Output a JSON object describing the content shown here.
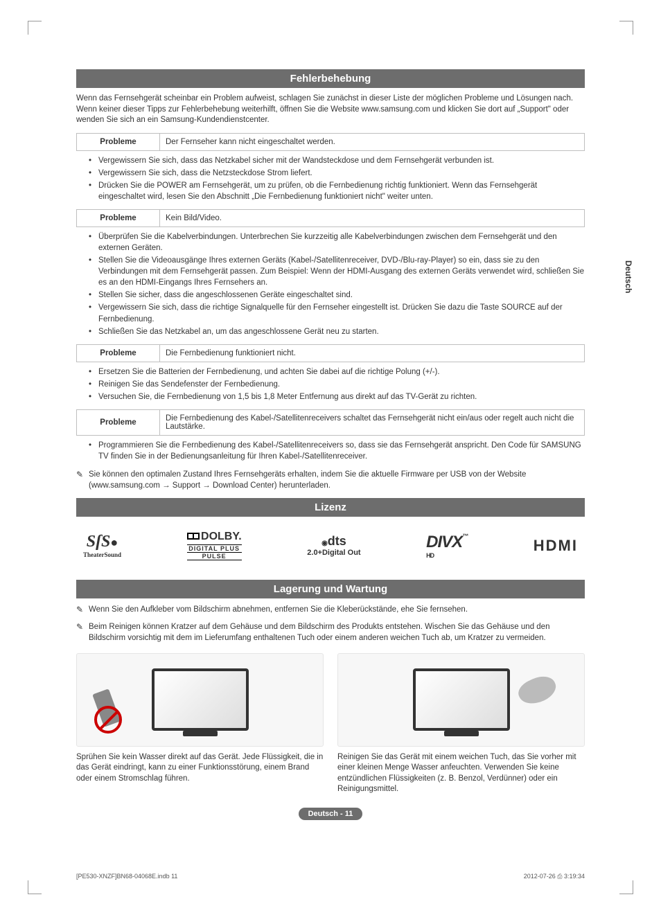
{
  "sideTab": "Deutsch",
  "sections": {
    "troubleshoot": {
      "title": "Fehlerbehebung",
      "intro": "Wenn das Fernsehgerät scheinbar ein Problem aufweist, schlagen Sie zunächst in dieser Liste der möglichen Probleme und Lösungen nach. Wenn keiner dieser Tipps zur Fehlerbehebung weiterhilft, öffnen Sie die Website www.samsung.com und klicken Sie dort auf „Support\" oder wenden Sie sich an ein Samsung-Kundendienstcenter.",
      "problemLabel": "Probleme",
      "p1": {
        "problem": "Der Fernseher kann nicht eingeschaltet werden.",
        "s1": "Vergewissern Sie sich, dass das Netzkabel sicher mit der Wandsteckdose und dem Fernsehgerät verbunden ist.",
        "s2": "Vergewissern Sie sich, dass die Netzsteckdose Strom liefert.",
        "s3": "Drücken Sie die POWER am Fernsehgerät, um zu prüfen, ob die Fernbedienung richtig funktioniert. Wenn das Fernsehgerät eingeschaltet wird, lesen Sie den Abschnitt „Die Fernbedienung funktioniert nicht\" weiter unten."
      },
      "p2": {
        "problem": "Kein Bild/Video.",
        "s1": "Überprüfen Sie die Kabelverbindungen. Unterbrechen Sie kurzzeitig alle Kabelverbindungen zwischen dem Fernsehgerät und den externen Geräten.",
        "s2": "Stellen Sie die Videoausgänge Ihres externen Geräts (Kabel-/Satellitenreceiver, DVD-/Blu-ray-Player) so ein, dass sie zu den Verbindungen mit dem Fernsehgerät passen.  Zum Beispiel: Wenn der HDMI-Ausgang des externen Geräts verwendet wird, schließen Sie es an den HDMI-Eingangs Ihres Fernsehers an.",
        "s3": "Stellen Sie sicher, dass die angeschlossenen Geräte eingeschaltet sind.",
        "s4": "Vergewissern Sie sich, dass die richtige Signalquelle für den Fernseher eingestellt ist. Drücken Sie dazu die Taste SOURCE auf der Fernbedienung.",
        "s5": "Schließen Sie das Netzkabel an, um das angeschlossene Gerät neu zu starten."
      },
      "p3": {
        "problem": "Die Fernbedienung funktioniert nicht.",
        "s1": "Ersetzen Sie die Batterien der Fernbedienung, und achten Sie dabei auf die richtige Polung (+/-).",
        "s2": "Reinigen Sie das Sendefenster der Fernbedienung.",
        "s3": "Versuchen Sie, die Fernbedienung von 1,5 bis 1,8 Meter Entfernung aus direkt auf das TV-Gerät zu richten."
      },
      "p4": {
        "problem": "Die Fernbedienung des Kabel-/Satellitenreceivers schaltet das Fernsehgerät nicht ein/aus oder regelt auch nicht die Lautstärke.",
        "s1": "Programmieren Sie die Fernbedienung des Kabel-/Satellitenreceivers so, dass sie das Fernsehgerät anspricht. Den Code für SAMSUNG TV finden Sie in der Bedienungsanleitung für Ihren Kabel-/Satellitenreceiver."
      },
      "note": "Sie können den optimalen Zustand Ihres Fernsehgeräts erhalten, indem Sie die aktuelle Firmware per USB von der Website (www.samsung.com → Support → Download Center) herunterladen."
    },
    "license": {
      "title": "Lizenz",
      "logos": {
        "srs": "SſS",
        "srsSub": "TheaterSound",
        "dolby": "DOLBY.",
        "dolbySub": "DIGITAL PLUS",
        "dolbySub2": "PULSE",
        "dts": "dts",
        "dtsSub": "2.0+Digital Out",
        "divx": "DIVX",
        "divxSub": "HD",
        "hdmi": "HDMI"
      }
    },
    "storage": {
      "title": "Lagerung und Wartung",
      "note1": "Wenn Sie den Aufkleber vom Bildschirm abnehmen, entfernen Sie die Kleberückstände, ehe Sie fernsehen.",
      "note2": "Beim Reinigen können Kratzer auf dem Gehäuse und dem Bildschirm des Produkts entstehen. Wischen Sie das Gehäuse und den Bildschirm vorsichtig mit dem im Lieferumfang enthaltenen Tuch oder einem anderen weichen Tuch ab, um Kratzer zu vermeiden.",
      "caption1": "Sprühen Sie kein Wasser direkt auf das Gerät. Jede Flüssigkeit, die in das Gerät eindringt, kann zu einer Funktionsstörung, einem Brand oder einem Stromschlag führen.",
      "caption2": "Reinigen Sie das Gerät mit einem weichen Tuch, das Sie vorher mit einer kleinen Menge Wasser anfeuchten. Verwenden Sie keine entzündlichen Flüssigkeiten (z. B. Benzol, Verdünner) oder ein Reinigungsmittel."
    }
  },
  "pageNum": "Deutsch - 11",
  "footer": {
    "left": "[PE530-XNZF]BN68-04068E.indb   11",
    "right": "2012-07-26   ⎙ 3:19:34"
  }
}
